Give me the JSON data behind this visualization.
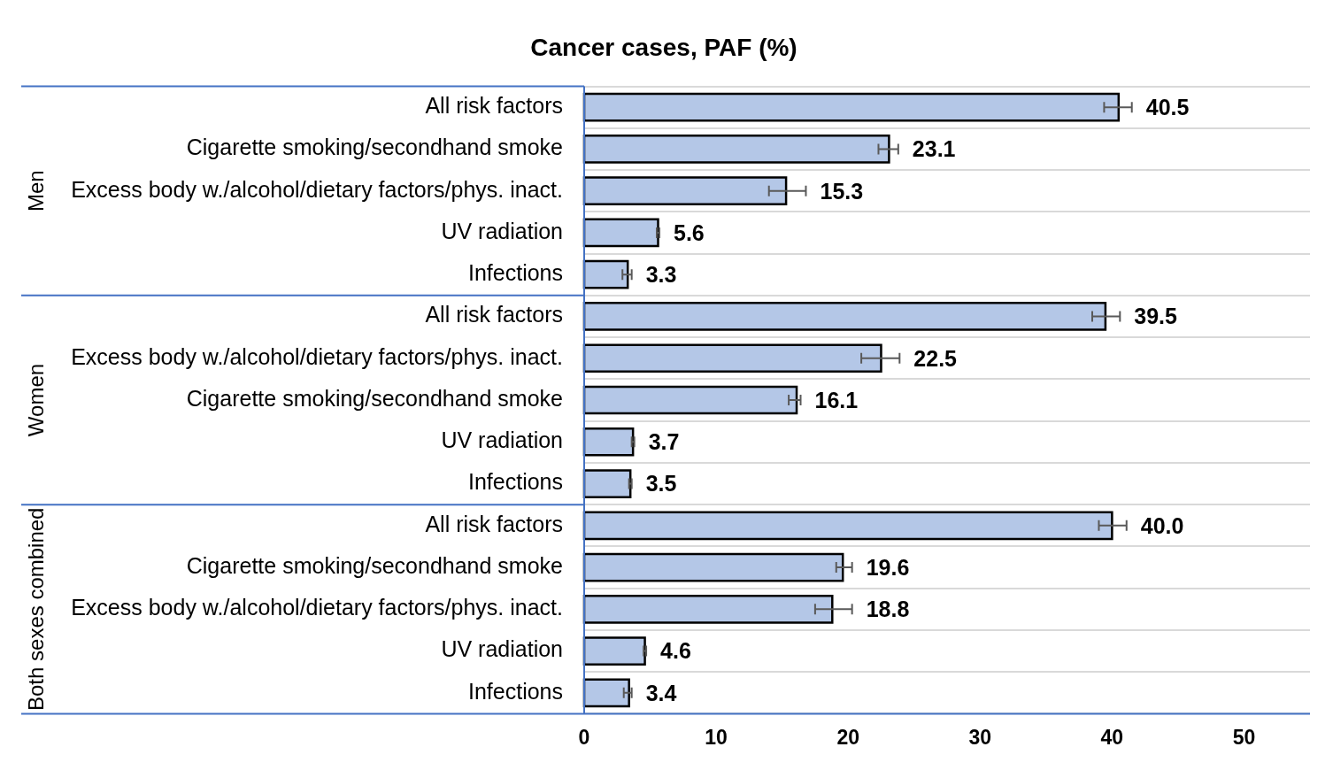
{
  "chart_data": {
    "type": "bar",
    "orientation": "horizontal",
    "title": "Cancer cases, PAF (%)",
    "categories": [
      "All risk factors",
      "Cigarette smoking/secondhand smoke",
      "Excess body w./alcohol/dietary factors/phys. inact.",
      "UV radiation",
      "Infections",
      "All risk factors",
      "Excess body w./alcohol/dietary factors/phys. inact.",
      "Cigarette smoking/secondhand smoke",
      "UV radiation",
      "Infections",
      "All risk factors",
      "Cigarette smoking/secondhand smoke",
      "Excess body w./alcohol/dietary factors/phys. inact.",
      "UV radiation",
      "Infections"
    ],
    "values": [
      40.5,
      23.1,
      15.3,
      5.6,
      3.3,
      39.5,
      22.5,
      16.1,
      3.7,
      3.5,
      40.0,
      19.6,
      18.8,
      4.6,
      3.4
    ],
    "errors": [
      [
        39.4,
        41.5
      ],
      [
        22.3,
        23.8
      ],
      [
        14.0,
        16.8
      ],
      [
        5.5,
        5.7
      ],
      [
        2.9,
        3.6
      ],
      [
        38.5,
        40.6
      ],
      [
        21.0,
        23.9
      ],
      [
        15.5,
        16.4
      ],
      [
        3.6,
        3.8
      ],
      [
        3.4,
        3.6
      ],
      [
        39.0,
        41.1
      ],
      [
        19.1,
        20.3
      ],
      [
        17.5,
        20.3
      ],
      [
        4.5,
        4.7
      ],
      [
        3.0,
        3.6
      ]
    ],
    "color": "#b4c7e7",
    "value_labels": [
      "40.5",
      "23.1",
      "15.3",
      "5.6",
      "3.3",
      "39.5",
      "22.5",
      "16.1",
      "3.7",
      "3.5",
      "40.0",
      "19.6",
      "18.8",
      "4.6",
      "3.4"
    ],
    "annotations": [
      "Men",
      "Women",
      "Both sexes combined"
    ],
    "xlim": [
      0,
      55
    ],
    "xticks": [
      0,
      10,
      20,
      30,
      40,
      50
    ],
    "grid": "y",
    "legend": false
  }
}
